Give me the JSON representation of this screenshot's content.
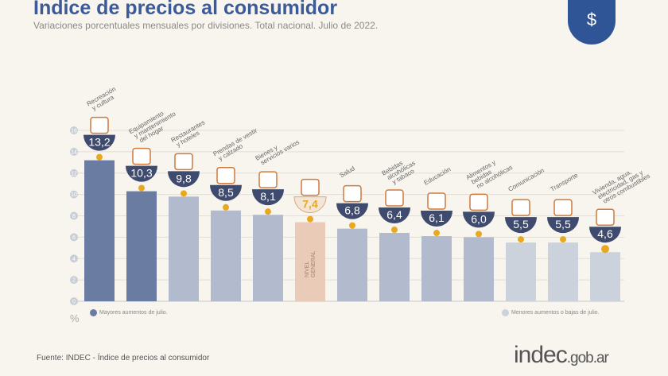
{
  "title": "Indice de precios al consumidor",
  "subtitle": "Variaciones porcentuales mensuales por divisiones. Total nacional. Julio de 2022.",
  "source": "Fuente: INDEC - Índice de precios al consumidor",
  "brand": {
    "main": "indec",
    "suffix": ".gob.ar"
  },
  "legend": {
    "high": "Mayores aumentos de julio.",
    "low": "Menores aumentos o bajas de julio."
  },
  "unit": "%",
  "chart_data": {
    "type": "bar",
    "categories": [
      "Recreación y cultura",
      "Equipamiento y mantenimiento del hogar",
      "Restaurantes y hoteles",
      "Prendas de vestir y calzado",
      "Bienes y servicios varios",
      "NIVEL GENERAL",
      "Salud",
      "Bebidas alcohólicas y tabaco",
      "Educación",
      "Alimentos y bebidas no alcohólicas",
      "Comunicación",
      "Transporte",
      "Vivienda, agua, electricidad, gas y otros combustibles"
    ],
    "values": [
      13.2,
      10.3,
      9.8,
      8.5,
      8.1,
      7.4,
      6.8,
      6.4,
      6.1,
      6.0,
      5.5,
      5.5,
      4.6
    ],
    "value_labels": [
      "13,2",
      "10,3",
      "9,8",
      "8,5",
      "8,1",
      "7,4",
      "6,8",
      "6,4",
      "6,1",
      "6,0",
      "5,5",
      "5,5",
      "4,6"
    ],
    "groups": [
      "high",
      "high",
      "mid",
      "mid",
      "mid",
      "general",
      "mid",
      "mid",
      "mid",
      "mid",
      "low",
      "low",
      "low"
    ],
    "ylim": [
      0,
      16
    ],
    "yticks": [
      0,
      2,
      4,
      6,
      8,
      10,
      12,
      14,
      16
    ],
    "grid": true,
    "colors": {
      "high": "#6a7ca2",
      "mid": "#b2bbce",
      "low": "#ccd2dc",
      "general": "#e9cbb8",
      "badge": "#3e4a6e",
      "dot": "#e8a820",
      "general_badge": "#e8a820"
    }
  }
}
